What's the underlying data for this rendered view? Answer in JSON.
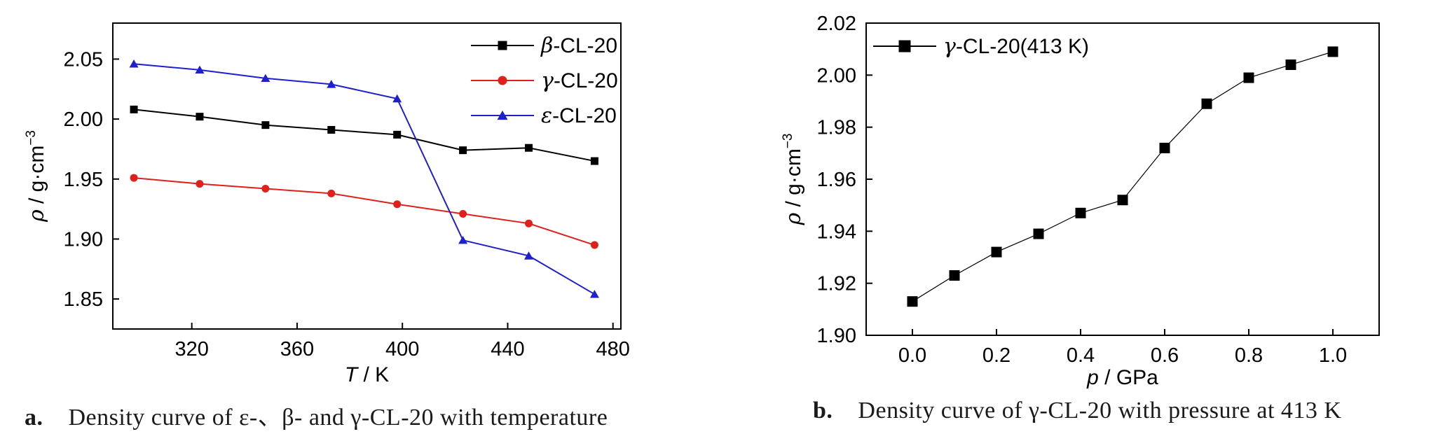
{
  "chart_data": [
    {
      "type": "line",
      "caption_label": "a.",
      "caption": "Density curve of ε-、β- and γ-CL-20 with temperature",
      "xlabel_var": "T",
      "xlabel_unit": " / K",
      "ylabel": "ρ / g·cm⁻³",
      "xlim": [
        290,
        483
      ],
      "ylim": [
        1.825,
        2.08
      ],
      "xticks": [
        320,
        360,
        400,
        440,
        480
      ],
      "yticks": [
        1.85,
        1.9,
        1.95,
        2.0,
        2.05
      ],
      "ytick_labels": [
        "1.85",
        "1.90",
        "1.95",
        "2.00",
        "2.05"
      ],
      "legend_position": "top-right",
      "series": [
        {
          "name": "β-CL-20",
          "greek": "β",
          "suffix": "-CL-20",
          "color": "#000000",
          "marker": "square",
          "x": [
            298,
            323,
            348,
            373,
            398,
            423,
            448,
            473
          ],
          "y": [
            2.008,
            2.002,
            1.995,
            1.991,
            1.987,
            1.974,
            1.976,
            1.965
          ]
        },
        {
          "name": "γ-CL-20",
          "greek": "γ",
          "suffix": "-CL-20",
          "color": "#e0201b",
          "marker": "circle",
          "x": [
            298,
            323,
            348,
            373,
            398,
            423,
            448,
            473
          ],
          "y": [
            1.951,
            1.946,
            1.942,
            1.938,
            1.929,
            1.921,
            1.913,
            1.895
          ]
        },
        {
          "name": "ε-CL-20",
          "greek": "ε",
          "suffix": "-CL-20",
          "color": "#1f1fd0",
          "marker": "triangle",
          "x": [
            298,
            323,
            348,
            373,
            398,
            423,
            448,
            473
          ],
          "y": [
            2.046,
            2.041,
            2.034,
            2.029,
            2.017,
            1.899,
            1.886,
            1.854
          ]
        }
      ]
    },
    {
      "type": "line",
      "caption_label": "b.",
      "caption": "Density curve of γ-CL-20 with pressure at 413 K",
      "xlabel_var": "p",
      "xlabel_unit": " / GPa",
      "ylabel": "ρ / g·cm⁻³",
      "xlim": [
        -0.11,
        1.11
      ],
      "ylim": [
        1.9,
        2.02
      ],
      "xticks": [
        0.0,
        0.2,
        0.4,
        0.6,
        0.8,
        1.0
      ],
      "xtick_labels": [
        "0.0",
        "0.2",
        "0.4",
        "0.6",
        "0.8",
        "1.0"
      ],
      "yticks": [
        1.9,
        1.92,
        1.94,
        1.96,
        1.98,
        2.0,
        2.02
      ],
      "ytick_labels": [
        "1.90",
        "1.92",
        "1.94",
        "1.96",
        "1.98",
        "2.00",
        "2.02"
      ],
      "legend_position": "top-left",
      "series": [
        {
          "name": "γ-CL-20(413 K)",
          "greek": "γ",
          "suffix": "-CL-20(413 K)",
          "color": "#000000",
          "marker": "square",
          "x": [
            0.0,
            0.1,
            0.2,
            0.3,
            0.4,
            0.5,
            0.6,
            0.7,
            0.8,
            0.9,
            1.0
          ],
          "y": [
            1.913,
            1.923,
            1.932,
            1.939,
            1.947,
            1.952,
            1.972,
            1.989,
            1.999,
            2.004,
            2.009
          ]
        }
      ]
    }
  ]
}
